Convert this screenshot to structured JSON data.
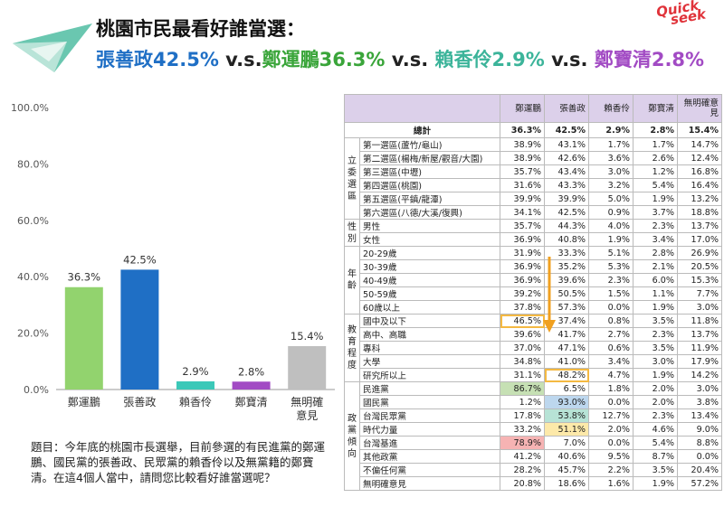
{
  "header": {
    "title": "桃園市民最看好誰當選：",
    "subtitle_parts": [
      {
        "text": "張善政42.5%",
        "cls": "t-chang"
      },
      {
        "text": " v.s.",
        "cls": "t-vs"
      },
      {
        "text": "鄭運鵬36.3%",
        "cls": "t-cheng"
      },
      {
        "text": " v.s. ",
        "cls": "t-vs"
      },
      {
        "text": "賴香伶2.9%",
        "cls": "t-lai"
      },
      {
        "text": " v.s. ",
        "cls": "t-vs"
      },
      {
        "text": "鄭寶清2.8%",
        "cls": "t-cheng2"
      }
    ],
    "brand_line1": "Quick",
    "brand_line2": "seek"
  },
  "chart_data": {
    "type": "bar",
    "categories": [
      "鄭運鵬",
      "張善政",
      "賴香伶",
      "鄭寶清",
      "無明確意見"
    ],
    "category_lines": [
      [
        "鄭運鵬"
      ],
      [
        "張善政"
      ],
      [
        "賴香伶"
      ],
      [
        "鄭寶清"
      ],
      [
        "無明確",
        "意見"
      ]
    ],
    "values": [
      36.3,
      42.5,
      2.9,
      2.8,
      15.4
    ],
    "value_labels": [
      "36.3%",
      "42.5%",
      "2.9%",
      "2.8%",
      "15.4%"
    ],
    "colors": [
      "#92d36e",
      "#1f6fc5",
      "#3cc8b8",
      "#a24bc4",
      "#bfbfbf"
    ],
    "yticks": [
      "0.0%",
      "20.0%",
      "40.0%",
      "60.0%",
      "80.0%",
      "100.0%"
    ],
    "ylim": [
      0,
      100
    ],
    "grid": false
  },
  "question": "題目：今年底的桃園市長選舉，目前參選的有民進黨的鄭運鵬、國民黨的張善政、民眾黨的賴香伶以及無黨籍的鄭寶清。在這4個人當中，請問您比較看好誰當選呢？",
  "table": {
    "headers": [
      "鄭運鵬",
      "張善政",
      "賴香伶",
      "鄭寶清",
      "無明確意見"
    ],
    "total": {
      "label": "總計",
      "values": [
        "36.3%",
        "42.5%",
        "2.9%",
        "2.8%",
        "15.4%"
      ]
    },
    "groups": [
      {
        "label": "立委選區",
        "rows": [
          {
            "label": "第一選區(蘆竹/龜山)",
            "values": [
              "38.9%",
              "43.1%",
              "1.7%",
              "1.7%",
              "14.7%"
            ]
          },
          {
            "label": "第二選區(楊梅/新屋/觀音/大園)",
            "values": [
              "38.9%",
              "42.6%",
              "3.6%",
              "2.6%",
              "12.4%"
            ]
          },
          {
            "label": "第三選區(中壢)",
            "values": [
              "35.7%",
              "43.4%",
              "3.0%",
              "1.2%",
              "16.8%"
            ]
          },
          {
            "label": "第四選區(桃園)",
            "values": [
              "31.6%",
              "43.3%",
              "3.2%",
              "5.4%",
              "16.4%"
            ]
          },
          {
            "label": "第五選區(平鎮/龍潭)",
            "values": [
              "39.9%",
              "39.9%",
              "5.0%",
              "1.9%",
              "13.2%"
            ]
          },
          {
            "label": "第六選區(八德/大溪/復興)",
            "values": [
              "34.1%",
              "42.5%",
              "0.9%",
              "3.7%",
              "18.8%"
            ]
          }
        ]
      },
      {
        "label": "性別",
        "rows": [
          {
            "label": "男性",
            "values": [
              "35.7%",
              "44.3%",
              "4.0%",
              "2.3%",
              "13.7%"
            ]
          },
          {
            "label": "女性",
            "values": [
              "36.9%",
              "40.8%",
              "1.9%",
              "3.4%",
              "17.0%"
            ]
          }
        ]
      },
      {
        "label": "年齡",
        "rows": [
          {
            "label": "20-29歲",
            "values": [
              "31.9%",
              "33.3%",
              "5.1%",
              "2.8%",
              "26.9%"
            ]
          },
          {
            "label": "30-39歲",
            "values": [
              "36.9%",
              "35.2%",
              "5.3%",
              "2.1%",
              "20.5%"
            ]
          },
          {
            "label": "40-49歲",
            "values": [
              "36.9%",
              "39.6%",
              "2.3%",
              "6.0%",
              "15.3%"
            ]
          },
          {
            "label": "50-59歲",
            "values": [
              "39.2%",
              "50.5%",
              "1.5%",
              "1.1%",
              "7.7%"
            ]
          },
          {
            "label": "60歲以上",
            "values": [
              "37.8%",
              "57.3%",
              "0.0%",
              "1.9%",
              "3.0%"
            ]
          }
        ]
      },
      {
        "label": "教育程度",
        "rows": [
          {
            "label": "國中及以下",
            "values": [
              "46.5%",
              "37.4%",
              "0.8%",
              "3.5%",
              "11.8%"
            ],
            "hl": [
              0
            ]
          },
          {
            "label": "高中、高職",
            "values": [
              "39.6%",
              "41.7%",
              "2.7%",
              "2.3%",
              "13.7%"
            ]
          },
          {
            "label": "專科",
            "values": [
              "37.0%",
              "47.1%",
              "0.6%",
              "3.5%",
              "11.9%"
            ]
          },
          {
            "label": "大學",
            "values": [
              "34.8%",
              "41.0%",
              "3.4%",
              "3.0%",
              "17.9%"
            ]
          },
          {
            "label": "研究所以上",
            "values": [
              "31.1%",
              "48.2%",
              "4.7%",
              "1.9%",
              "14.2%"
            ],
            "hl": [
              1
            ]
          }
        ]
      },
      {
        "label": "政黨傾向",
        "rows": [
          {
            "label": "民進黨",
            "values": [
              "86.7%",
              "6.5%",
              "1.8%",
              "2.0%",
              "3.0%"
            ],
            "bg": {
              "0": "bg-green"
            }
          },
          {
            "label": "國民黨",
            "values": [
              "1.2%",
              "93.0%",
              "0.0%",
              "2.0%",
              "3.8%"
            ],
            "bg": {
              "1": "bg-blue"
            }
          },
          {
            "label": "台灣民眾黨",
            "values": [
              "17.8%",
              "53.8%",
              "12.7%",
              "2.3%",
              "13.4%"
            ],
            "bg": {
              "1": "bg-teal"
            }
          },
          {
            "label": "時代力量",
            "values": [
              "33.2%",
              "51.1%",
              "2.0%",
              "4.6%",
              "9.0%"
            ],
            "bg": {
              "1": "bg-yellow"
            }
          },
          {
            "label": "台灣基進",
            "values": [
              "78.9%",
              "7.0%",
              "0.0%",
              "5.4%",
              "8.8%"
            ],
            "bg": {
              "0": "bg-pink"
            }
          },
          {
            "label": "其他政黨",
            "values": [
              "41.2%",
              "40.6%",
              "9.5%",
              "8.7%",
              "0.0%"
            ]
          },
          {
            "label": "不偏任何黨",
            "values": [
              "28.2%",
              "45.7%",
              "2.2%",
              "3.5%",
              "20.4%"
            ]
          },
          {
            "label": "無明確意見",
            "values": [
              "20.8%",
              "18.6%",
              "1.6%",
              "1.9%",
              "57.2%"
            ]
          }
        ]
      }
    ]
  }
}
